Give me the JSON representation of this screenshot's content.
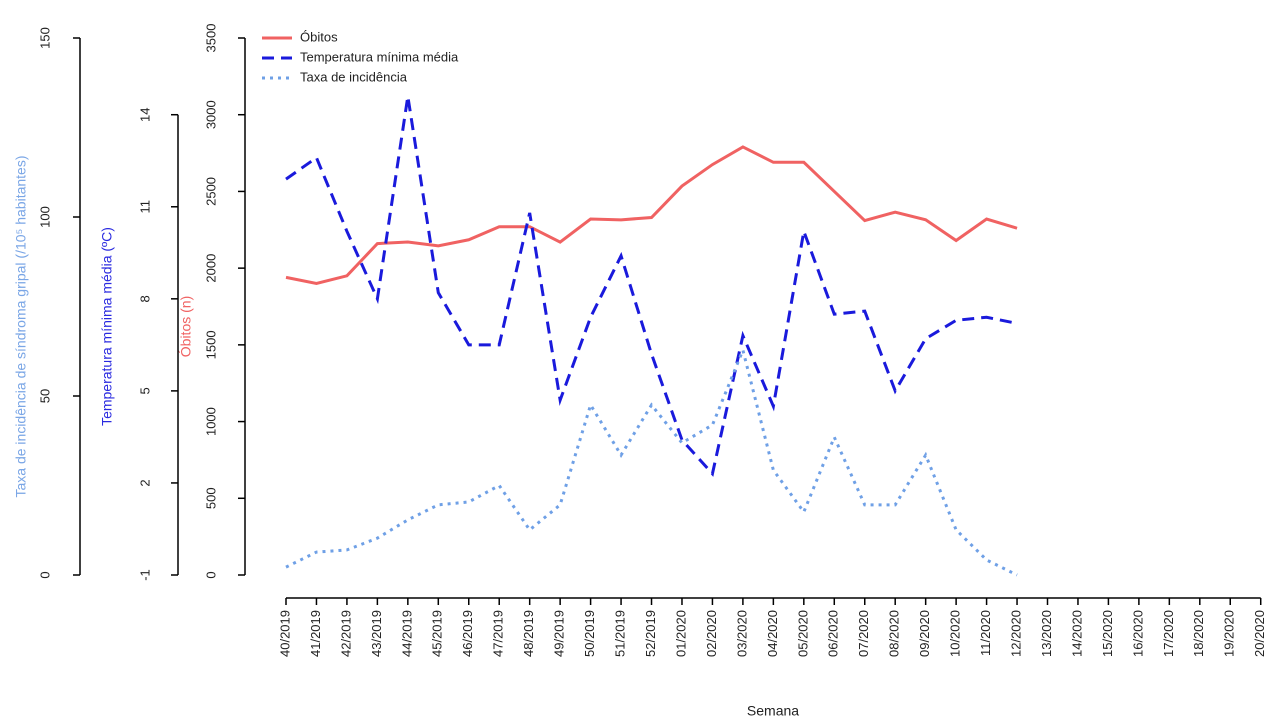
{
  "chart_data": {
    "type": "line",
    "xlabel": "Semana",
    "ylabel": "Óbitos (n)",
    "y2label": "Temperatura mínima média (ºC)",
    "y3label": "Taxa de incidência de síndroma gripal (/10⁵ habitantes)",
    "categories": [
      "40/2019",
      "41/2019",
      "42/2019",
      "43/2019",
      "44/2019",
      "45/2019",
      "46/2019",
      "47/2019",
      "48/2019",
      "49/2019",
      "50/2019",
      "51/2019",
      "52/2019",
      "01/2020",
      "02/2020",
      "03/2020",
      "04/2020",
      "05/2020",
      "06/2020",
      "07/2020",
      "08/2020",
      "09/2020",
      "10/2020",
      "11/2020",
      "12/2020",
      "13/2020",
      "14/2020",
      "15/2020",
      "16/2020",
      "17/2020",
      "18/2020",
      "19/2020",
      "20/2020"
    ],
    "ylim": [
      0,
      3500
    ],
    "yticks": [
      0,
      500,
      1000,
      1500,
      2000,
      2500,
      3000,
      3500
    ],
    "y2lim": [
      -1,
      16.5
    ],
    "y2ticks": [
      -1,
      2,
      5,
      8,
      11,
      14
    ],
    "y3lim": [
      0,
      150
    ],
    "y3ticks": [
      0,
      50,
      100,
      150
    ],
    "legend": "top-left",
    "series": [
      {
        "name": "Óbitos",
        "color": "#f06262",
        "dash": "solid",
        "axis": "y",
        "values": [
          1940,
          1900,
          1950,
          2160,
          2170,
          2145,
          2185,
          2270,
          2270,
          2170,
          2320,
          2315,
          2330,
          2535,
          2675,
          2790,
          2690,
          2690,
          2500,
          2310,
          2365,
          2315,
          2180,
          2320,
          2260,
          null,
          null,
          null,
          null,
          null,
          null,
          null,
          null
        ]
      },
      {
        "name": "Temperatura mínima média",
        "color": "#1a1adc",
        "dash": "dashed",
        "axis": "y2",
        "values": [
          11.9,
          12.6,
          10.2,
          8.0,
          14.6,
          8.2,
          6.5,
          6.5,
          10.8,
          4.7,
          7.4,
          9.4,
          6.2,
          3.4,
          2.3,
          6.8,
          4.5,
          10.2,
          7.5,
          7.6,
          5.0,
          6.7,
          7.3,
          7.4,
          7.2,
          null,
          null,
          null,
          null,
          null,
          null,
          null,
          null
        ]
      },
      {
        "name": "Taxa de incidência",
        "color": "#6fa0e6",
        "dash": "dotted",
        "axis": "y3",
        "values": [
          2.2,
          6.4,
          7,
          10.3,
          15.4,
          19.6,
          20.4,
          25,
          12.6,
          19.6,
          47.5,
          33.5,
          47.5,
          36.9,
          41.9,
          62.8,
          29.3,
          17.6,
          38.5,
          19.6,
          19.6,
          33.5,
          12.6,
          4.2,
          0,
          null,
          null,
          null,
          null,
          null,
          null,
          null,
          null
        ]
      }
    ]
  }
}
